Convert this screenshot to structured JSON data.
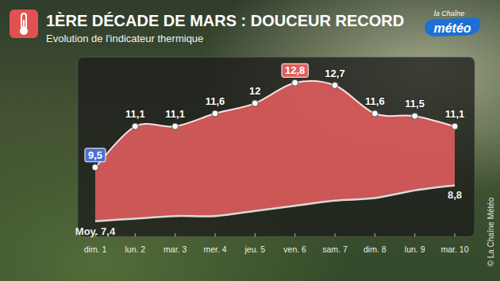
{
  "chart_data": {
    "type": "area",
    "title": "1ÈRE DÉCADE DE MARS : DOUCEUR RECORD",
    "subtitle": "Evolution de l'indicateur thermique",
    "logo": [
      "la Chaîne",
      "météo"
    ],
    "source": "© La Chaîne Météo",
    "categories": [
      "dim. 1",
      "lun. 2",
      "mar. 3",
      "mer. 4",
      "jeu. 5",
      "ven. 6",
      "sam. 7",
      "dim. 8",
      "lun. 9",
      "mar. 10"
    ],
    "ylim": [
      6.8,
      13.8
    ],
    "tick_labels": "x",
    "grid": false,
    "data_labels": true,
    "series": [
      {
        "color": "#e25d5d",
        "line_style": "smooth",
        "marker": "circle",
        "values": [
          9.5,
          11.1,
          11.1,
          11.6,
          12,
          12.8,
          12.7,
          11.6,
          11.5,
          11.1
        ],
        "value_labels": [
          "9,5",
          "11,1",
          "11,1",
          "11,6",
          "12",
          "12,8",
          "12,7",
          "11,6",
          "11,5",
          "11,1"
        ]
      },
      {
        "color": "#d9d9d9",
        "line_style": "smooth",
        "values": [
          7.4,
          7.5,
          7.6,
          7.6,
          7.8,
          8.0,
          8.2,
          8.3,
          8.6,
          8.8
        ],
        "value_labels": [
          "Moy. 7,4",
          null,
          null,
          null,
          null,
          null,
          null,
          null,
          null,
          "8,8"
        ]
      }
    ]
  }
}
